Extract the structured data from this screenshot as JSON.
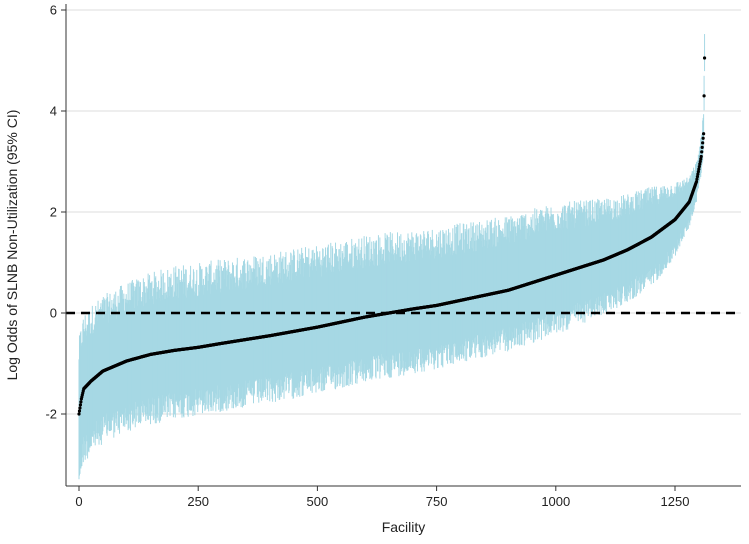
{
  "chart_data": {
    "type": "scatter",
    "subtype": "caterpillar-plot-with-95pct-ci",
    "xlabel": "Facility",
    "ylabel": "Log Odds of SLNB Non-Utilization (95% CI)",
    "xlim": [
      0,
      1320
    ],
    "ylim": [
      -3.3,
      6.1
    ],
    "x_ticks": [
      0,
      250,
      500,
      750,
      1000,
      1250
    ],
    "y_ticks": [
      -2,
      0,
      2,
      4,
      6
    ],
    "n_facilities": 1313,
    "reference_line": {
      "y": 0,
      "style": "dashed"
    },
    "grid": "horizontal-major",
    "series": [
      {
        "role": "point-estimate",
        "sorted_ascending": true,
        "x": [
          0,
          5,
          10,
          25,
          50,
          100,
          150,
          200,
          250,
          300,
          400,
          500,
          600,
          650,
          700,
          750,
          800,
          900,
          1000,
          1100,
          1150,
          1200,
          1250,
          1280,
          1295,
          1305,
          1310,
          1312
        ],
        "values": [
          -2.0,
          -1.7,
          -1.5,
          -1.35,
          -1.15,
          -0.95,
          -0.82,
          -0.74,
          -0.68,
          -0.6,
          -0.45,
          -0.28,
          -0.08,
          0.0,
          0.08,
          0.15,
          0.25,
          0.45,
          0.75,
          1.05,
          1.25,
          1.5,
          1.85,
          2.2,
          2.6,
          3.1,
          3.55,
          5.05
        ]
      },
      {
        "role": "95pct-ci",
        "lower_offset": {
          "x": [
            0,
            50,
            200,
            600,
            1000,
            1200,
            1250,
            1280,
            1300,
            1312
          ],
          "values": [
            1.2,
            1.15,
            1.1,
            1.05,
            0.95,
            0.8,
            0.6,
            0.4,
            0.3,
            0.3
          ]
        },
        "upper_offset": {
          "x": [
            0,
            50,
            200,
            600,
            1000,
            1200,
            1250,
            1280,
            1300,
            1312
          ],
          "values": [
            1.2,
            1.2,
            1.35,
            1.3,
            1.15,
            0.8,
            0.6,
            0.4,
            0.3,
            0.4
          ]
        }
      }
    ]
  },
  "style": {
    "ci_color": "#a6d8e4",
    "point_color": "#000000",
    "refline_color": "#000000",
    "grid_color": "#dddddd",
    "axis_color": "#333333"
  }
}
